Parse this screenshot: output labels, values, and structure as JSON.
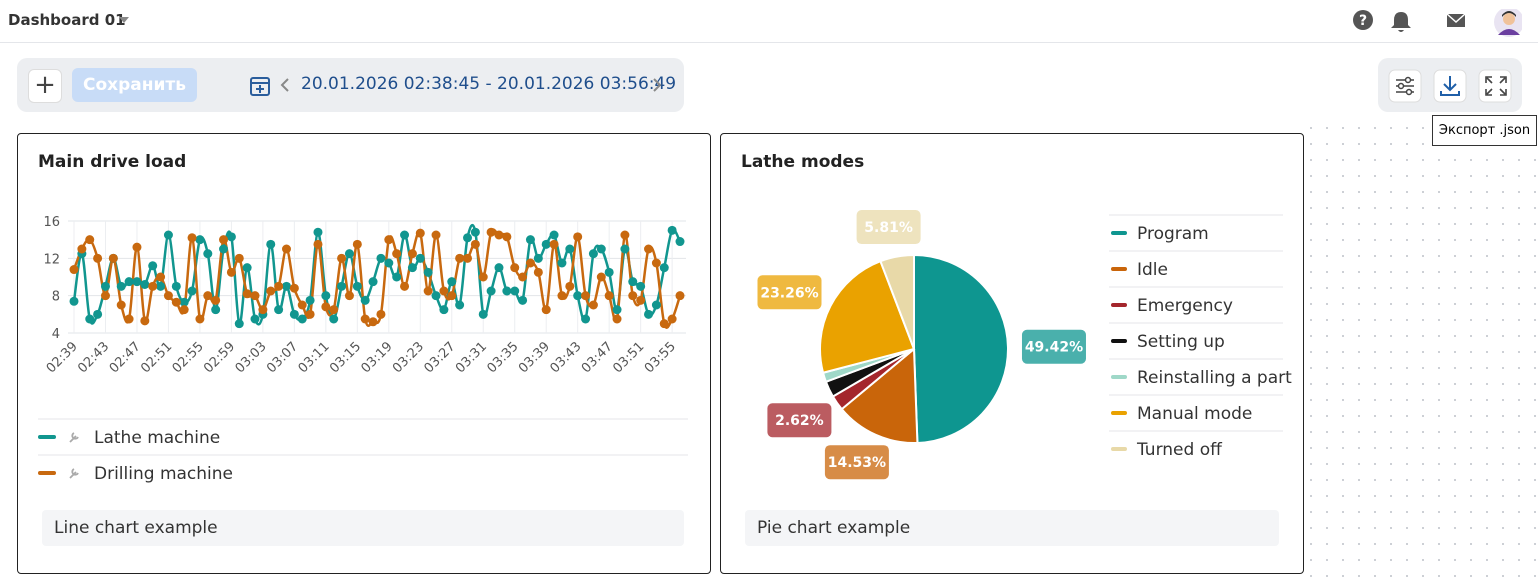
{
  "header": {
    "title": "Dashboard 01"
  },
  "toolbar": {
    "save": "Сохранить",
    "range": "20.01.2026 02:38:45 - 20.01.2026 03:56:49",
    "tooltip": "Экспорт .json"
  },
  "chart_data": [
    {
      "type": "line",
      "title": "Main drive load",
      "footer": "Line chart example",
      "categories": [
        "02:39",
        null,
        null,
        null,
        "02:43",
        null,
        null,
        null,
        "02:47",
        null,
        null,
        null,
        "02:51",
        null,
        null,
        null,
        "02:55",
        null,
        null,
        null,
        "02:59",
        null,
        null,
        null,
        "03:03",
        null,
        null,
        null,
        "03:07",
        null,
        null,
        null,
        "03:11",
        null,
        null,
        null,
        "03:15",
        null,
        null,
        null,
        "03:19",
        null,
        null,
        null,
        "03:23",
        null,
        null,
        null,
        "03:27",
        null,
        null,
        null,
        "03:31",
        null,
        null,
        null,
        "03:35",
        null,
        null,
        null,
        "03:39",
        null,
        null,
        null,
        "03:43",
        null,
        null,
        null,
        "03:47",
        null,
        null,
        null,
        "03:51",
        null,
        null,
        null,
        "03:55",
        null
      ],
      "ylim": [
        4,
        16
      ],
      "yticks": [
        4,
        8,
        12,
        16
      ],
      "grid": true,
      "series": [
        {
          "name": "Lathe machine",
          "color": "#11968f",
          "values": [
            7.4,
            12.5,
            5.5,
            6,
            9,
            12,
            9,
            9.5,
            9.5,
            9.2,
            11.2,
            9,
            14.5,
            9,
            7.3,
            8.5,
            14,
            12.5,
            6.5,
            13,
            14.3,
            5,
            11,
            5.5,
            6,
            13.5,
            6.5,
            9,
            6,
            5.5,
            7.5,
            14.8,
            8,
            5.5,
            9,
            12.5,
            9,
            7.5,
            9.5,
            12,
            11.5,
            10,
            14.5,
            11,
            12,
            10.5,
            8,
            6.5,
            9.5,
            7,
            14.2,
            14.8,
            6,
            8.5,
            11,
            8.5,
            8.5,
            7.5,
            14,
            12,
            13.5,
            14.5,
            11.5,
            13,
            8,
            5.5,
            12.5,
            13,
            10.5,
            6.5,
            13,
            9.5,
            9,
            6,
            7,
            11,
            15,
            13.8
          ]
        },
        {
          "name": "Drilling machine",
          "color": "#c8690f",
          "values": [
            10.8,
            13,
            14,
            12,
            8,
            12,
            7,
            5.5,
            13.2,
            5.3,
            9,
            10,
            8,
            7.3,
            6.5,
            14.2,
            5.5,
            8,
            7.5,
            14,
            10.5,
            12,
            8.2,
            8,
            6.5,
            8.5,
            9,
            13,
            8.8,
            7,
            6,
            13.5,
            6.8,
            6.5,
            12,
            8,
            13.5,
            5.5,
            5.2,
            6,
            14,
            12.5,
            9,
            12.5,
            14.7,
            8.5,
            14.5,
            8.5,
            8,
            12,
            12,
            13.5,
            10,
            14.8,
            14.5,
            14.3,
            11,
            10,
            11.5,
            10.5,
            6.5,
            13.5,
            8,
            9,
            14.3,
            8,
            7,
            10,
            8,
            5.5,
            14.5,
            8,
            7.5,
            13,
            11.5,
            5,
            5.5,
            8
          ]
        }
      ]
    },
    {
      "type": "pie",
      "title": "Lathe modes",
      "footer": "Pie chart example",
      "categories": [
        "Program",
        "Idle",
        "Emergency",
        "Setting up",
        "Reinstalling a part",
        "Manual mode",
        "Turned off"
      ],
      "values": [
        49.42,
        14.53,
        2.62,
        2.76,
        1.6,
        23.26,
        5.81
      ],
      "value_labels": [
        "49.42%",
        "14.53%",
        "2.62%",
        null,
        null,
        "23.26%",
        "5.81%"
      ],
      "colors": [
        "#0e9690",
        "#c9650a",
        "#a4262c",
        "#111111",
        "#9fd8c8",
        "#eaa200",
        "#e8d9a8"
      ]
    }
  ]
}
